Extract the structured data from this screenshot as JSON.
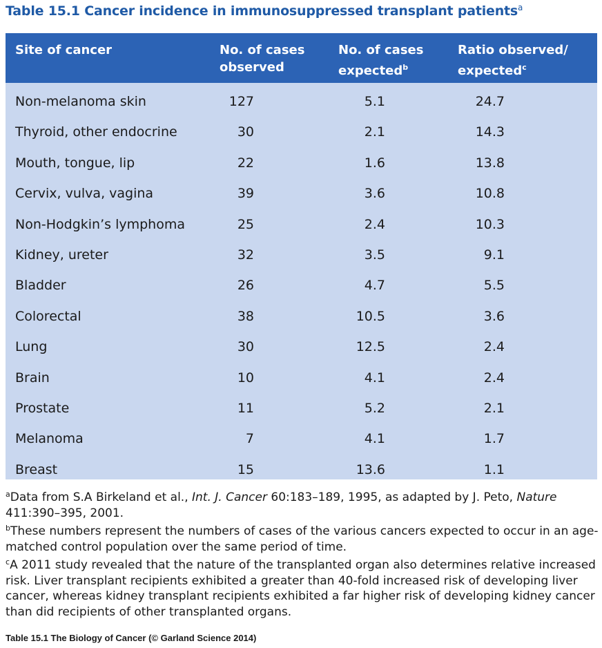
{
  "title": {
    "label": "Table 15.1",
    "caption": "Cancer incidence in immunosuppressed transplant patients",
    "footnote_mark": "a"
  },
  "columns": [
    {
      "line1": "Site of cancer",
      "line2": "",
      "mark": ""
    },
    {
      "line1": "No. of cases",
      "line2": "observed",
      "mark": ""
    },
    {
      "line1": "No. of cases",
      "line2": "expected",
      "mark": "b"
    },
    {
      "line1": "Ratio observed/",
      "line2": "expected",
      "mark": "c"
    }
  ],
  "rows": [
    {
      "site": "Non-melanoma skin",
      "observed": "127",
      "expected": "5.1",
      "ratio": "24.7"
    },
    {
      "site": "Thyroid, other endocrine",
      "observed": "30",
      "expected": "2.1",
      "ratio": "14.3"
    },
    {
      "site": "Mouth, tongue, lip",
      "observed": "22",
      "expected": "1.6",
      "ratio": "13.8"
    },
    {
      "site": "Cervix, vulva, vagina",
      "observed": "39",
      "expected": "3.6",
      "ratio": "10.8"
    },
    {
      "site": "Non-Hodgkin’s lymphoma",
      "observed": "25",
      "expected": "2.4",
      "ratio": "10.3"
    },
    {
      "site": "Kidney, ureter",
      "observed": "32",
      "expected": "3.5",
      "ratio": "9.1"
    },
    {
      "site": "Bladder",
      "observed": "26",
      "expected": "4.7",
      "ratio": "5.5"
    },
    {
      "site": "Colorectal",
      "observed": "38",
      "expected": "10.5",
      "ratio": "3.6"
    },
    {
      "site": "Lung",
      "observed": "30",
      "expected": "12.5",
      "ratio": "2.4"
    },
    {
      "site": "Brain",
      "observed": "10",
      "expected": "4.1",
      "ratio": "2.4"
    },
    {
      "site": "Prostate",
      "observed": "11",
      "expected": "5.2",
      "ratio": "2.1"
    },
    {
      "site": "Melanoma",
      "observed": "7",
      "expected": "4.1",
      "ratio": "1.7"
    },
    {
      "site": "Breast",
      "observed": "15",
      "expected": "13.6",
      "ratio": "1.1"
    }
  ],
  "notes": {
    "a": {
      "mark": "a",
      "text1": "Data from S.A Birkeland et al., ",
      "journal1": "Int. J. Cancer",
      "text2": " 60:183–189, 1995, as adapted by J. Peto, ",
      "journal2": "Nature",
      "text3": " 411:390–395, 2001."
    },
    "b": {
      "mark": "b",
      "text": "These numbers represent the numbers of cases of the various cancers expected to occur in an age-matched control population over the same period of time."
    },
    "c": {
      "mark": "c",
      "text": "A 2011 study revealed that the nature of the transplanted organ also determines relative increased risk. Liver transplant recipients exhibited a greater than 40-fold increased risk of developing liver cancer, whereas kidney transplant recipients exhibited a far higher risk of developing kidney cancer than did recipients of other transplanted organs."
    }
  },
  "footer": "Table 15.1 The Biology of Cancer (© Garland Science 2014)",
  "colors": {
    "title": "#1f5aa6",
    "header_bg": "#2c63b5",
    "body_bg": "#c9d7ef"
  }
}
